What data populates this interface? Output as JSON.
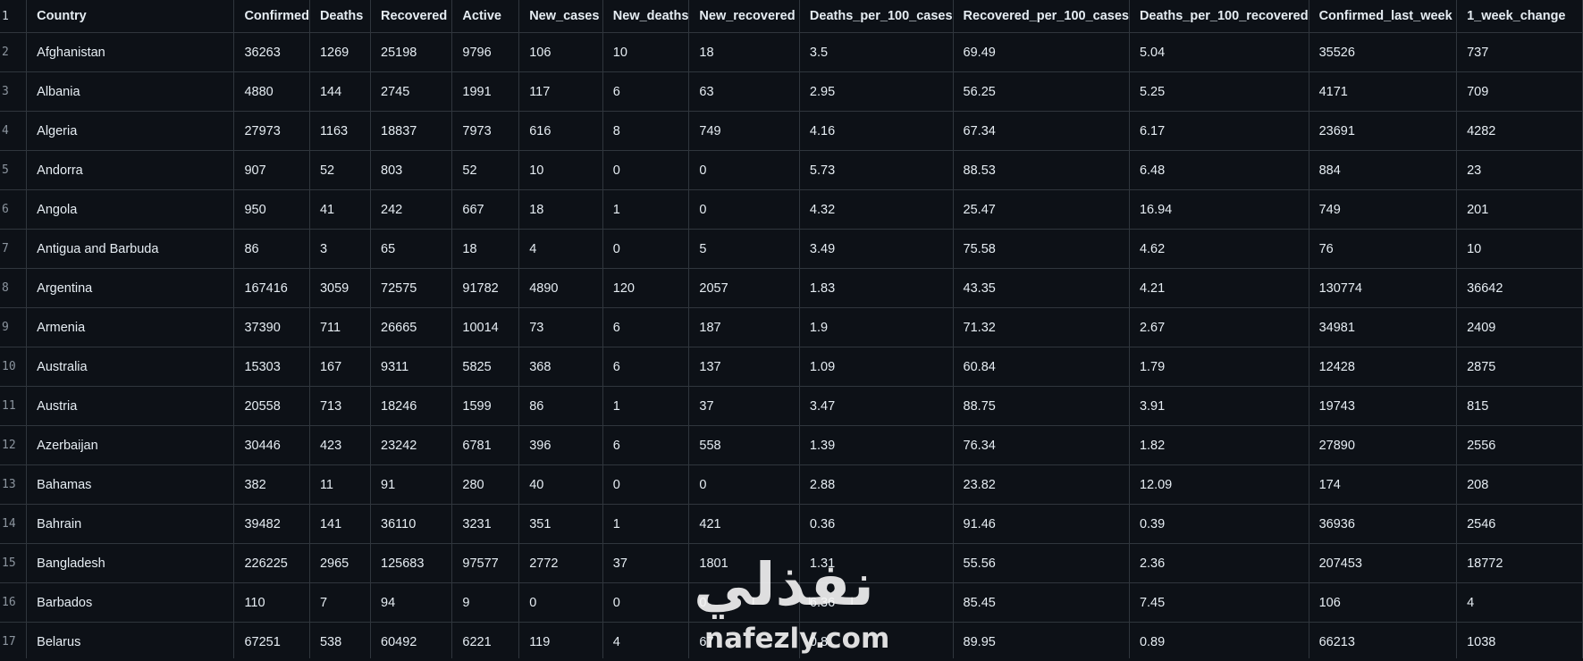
{
  "header": {
    "row_number": "1",
    "columns": [
      "Country",
      "Confirmed",
      "Deaths",
      "Recovered",
      "Active",
      "New_cases",
      "New_deaths",
      "New_recovered",
      "Deaths_per_100_cases",
      "Recovered_per_100_cases",
      "Deaths_per_100_recovered",
      "Confirmed_last_week",
      "1_week_change"
    ]
  },
  "rows": [
    {
      "num": "2",
      "cells": [
        "Afghanistan",
        "36263",
        "1269",
        "25198",
        "9796",
        "106",
        "10",
        "18",
        "3.5",
        "69.49",
        "5.04",
        "35526",
        "737"
      ]
    },
    {
      "num": "3",
      "cells": [
        "Albania",
        "4880",
        "144",
        "2745",
        "1991",
        "117",
        "6",
        "63",
        "2.95",
        "56.25",
        "5.25",
        "4171",
        "709"
      ]
    },
    {
      "num": "4",
      "cells": [
        "Algeria",
        "27973",
        "1163",
        "18837",
        "7973",
        "616",
        "8",
        "749",
        "4.16",
        "67.34",
        "6.17",
        "23691",
        "4282"
      ]
    },
    {
      "num": "5",
      "cells": [
        "Andorra",
        "907",
        "52",
        "803",
        "52",
        "10",
        "0",
        "0",
        "5.73",
        "88.53",
        "6.48",
        "884",
        "23"
      ]
    },
    {
      "num": "6",
      "cells": [
        "Angola",
        "950",
        "41",
        "242",
        "667",
        "18",
        "1",
        "0",
        "4.32",
        "25.47",
        "16.94",
        "749",
        "201"
      ]
    },
    {
      "num": "7",
      "cells": [
        "Antigua and Barbuda",
        "86",
        "3",
        "65",
        "18",
        "4",
        "0",
        "5",
        "3.49",
        "75.58",
        "4.62",
        "76",
        "10"
      ]
    },
    {
      "num": "8",
      "cells": [
        "Argentina",
        "167416",
        "3059",
        "72575",
        "91782",
        "4890",
        "120",
        "2057",
        "1.83",
        "43.35",
        "4.21",
        "130774",
        "36642"
      ]
    },
    {
      "num": "9",
      "cells": [
        "Armenia",
        "37390",
        "711",
        "26665",
        "10014",
        "73",
        "6",
        "187",
        "1.9",
        "71.32",
        "2.67",
        "34981",
        "2409"
      ]
    },
    {
      "num": "10",
      "cells": [
        "Australia",
        "15303",
        "167",
        "9311",
        "5825",
        "368",
        "6",
        "137",
        "1.09",
        "60.84",
        "1.79",
        "12428",
        "2875"
      ]
    },
    {
      "num": "11",
      "cells": [
        "Austria",
        "20558",
        "713",
        "18246",
        "1599",
        "86",
        "1",
        "37",
        "3.47",
        "88.75",
        "3.91",
        "19743",
        "815"
      ]
    },
    {
      "num": "12",
      "cells": [
        "Azerbaijan",
        "30446",
        "423",
        "23242",
        "6781",
        "396",
        "6",
        "558",
        "1.39",
        "76.34",
        "1.82",
        "27890",
        "2556"
      ]
    },
    {
      "num": "13",
      "cells": [
        "Bahamas",
        "382",
        "11",
        "91",
        "280",
        "40",
        "0",
        "0",
        "2.88",
        "23.82",
        "12.09",
        "174",
        "208"
      ]
    },
    {
      "num": "14",
      "cells": [
        "Bahrain",
        "39482",
        "141",
        "36110",
        "3231",
        "351",
        "1",
        "421",
        "0.36",
        "91.46",
        "0.39",
        "36936",
        "2546"
      ]
    },
    {
      "num": "15",
      "cells": [
        "Bangladesh",
        "226225",
        "2965",
        "125683",
        "97577",
        "2772",
        "37",
        "1801",
        "1.31",
        "55.56",
        "2.36",
        "207453",
        "18772"
      ]
    },
    {
      "num": "16",
      "cells": [
        "Barbados",
        "110",
        "7",
        "94",
        "9",
        "0",
        "0",
        "0",
        "6.36",
        "85.45",
        "7.45",
        "106",
        "4"
      ]
    },
    {
      "num": "17",
      "cells": [
        "Belarus",
        "67251",
        "538",
        "60492",
        "6221",
        "119",
        "4",
        "67",
        "0.8",
        "89.95",
        "0.89",
        "66213",
        "1038"
      ]
    }
  ],
  "watermark": {
    "arabic": "نفذلي",
    "latin": "nafezly.com"
  }
}
